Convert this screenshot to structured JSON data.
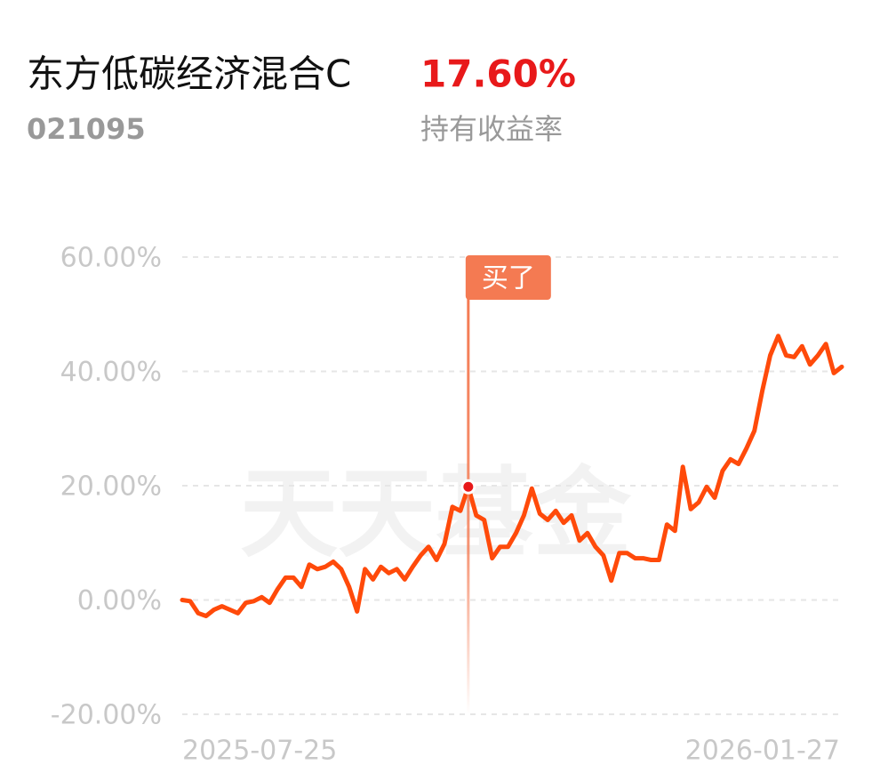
{
  "chart_data": {
    "type": "line",
    "title": "东方低碳经济混合C",
    "subtitle": "021095",
    "holding_return": {
      "value": "17.60%",
      "label": "持有收益率"
    },
    "watermark": "天天基金",
    "categories": [
      "2025-07-25",
      null,
      null,
      null,
      null,
      null,
      null,
      null,
      null,
      null,
      null,
      null,
      null,
      null,
      null,
      null,
      null,
      null,
      null,
      null,
      null,
      null,
      null,
      null,
      null,
      null,
      null,
      null,
      null,
      null,
      null,
      null,
      null,
      null,
      null,
      null,
      null,
      null,
      null,
      null,
      null,
      null,
      null,
      null,
      null,
      null,
      null,
      null,
      null,
      null,
      null,
      null,
      null,
      null,
      null,
      null,
      null,
      null,
      null,
      null,
      null,
      null,
      null,
      null,
      null,
      null,
      null,
      null,
      null,
      null,
      null,
      null,
      null,
      null,
      null,
      null,
      null,
      null,
      null,
      null,
      null,
      null,
      null,
      "2026-01-27"
    ],
    "series": [
      {
        "color": "#ff4a0a",
        "values": [
          0,
          -0.2,
          -2.3,
          -2.8,
          -1.7,
          -1.1,
          -1.7,
          -2.3,
          -0.5,
          -0.2,
          0.5,
          -0.5,
          1.9,
          3.9,
          3.9,
          2.3,
          6.2,
          5.4,
          5.8,
          6.7,
          5.4,
          2.3,
          -2.0,
          5.4,
          3.6,
          5.8,
          4.7,
          5.4,
          3.6,
          5.8,
          7.8,
          9.3,
          7.0,
          9.8,
          16.3,
          15.6,
          19.8,
          14.8,
          14.0,
          7.3,
          9.3,
          9.3,
          11.7,
          14.8,
          19.5,
          15.1,
          14.0,
          15.6,
          13.5,
          14.8,
          10.4,
          11.7,
          9.3,
          7.8,
          3.4,
          8.2,
          8.2,
          7.3,
          7.3,
          7.0,
          7.0,
          13.2,
          12.1,
          23.3,
          15.9,
          17.1,
          19.8,
          17.9,
          22.6,
          24.6,
          23.8,
          26.5,
          29.6,
          36.6,
          42.8,
          46.2,
          42.8,
          42.5,
          44.4,
          41.2,
          42.8,
          44.8,
          39.7,
          40.8
        ]
      }
    ],
    "annotations": [
      {
        "text": "买了",
        "index": 36
      }
    ],
    "ylim": [
      -20,
      60
    ],
    "yticks": [
      {
        "value": -20,
        "label": "-20.00%"
      },
      {
        "value": 0,
        "label": "0.00%"
      },
      {
        "value": 20,
        "label": "20.00%"
      },
      {
        "value": 40,
        "label": "40.00%"
      },
      {
        "value": 60,
        "label": "60.00%"
      }
    ],
    "grid": true
  }
}
